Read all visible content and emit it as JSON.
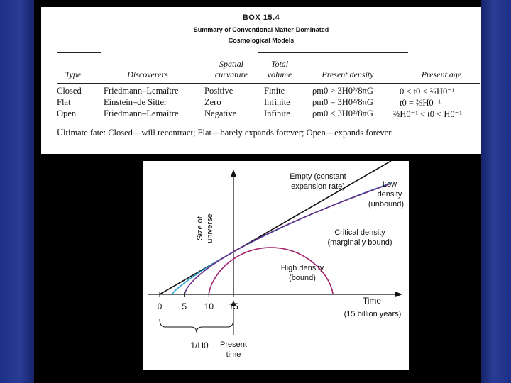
{
  "box": {
    "title": "BOX 15.4",
    "subtitle1": "Summary of Conventional Matter-Dominated",
    "subtitle2": "Cosmological Models",
    "columns": {
      "type": "Type",
      "discoverers": "Discoverers",
      "curvature_l1": "Spatial",
      "curvature_l2": "curvature",
      "volume_l1": "Total",
      "volume_l2": "volume",
      "density": "Present density",
      "age": "Present age"
    },
    "rows": [
      {
        "type": "Closed",
        "discoverers": "Friedmann–Lemaître",
        "curvature": "Positive",
        "volume": "Finite",
        "density": "ρm0 > 3H0²/8πG",
        "age": "0 < t0 < ⅔H0⁻¹"
      },
      {
        "type": "Flat",
        "discoverers": "Einstein–de Sitter",
        "curvature": "Zero",
        "volume": "Infinite",
        "density": "ρm0 = 3H0²/8πG",
        "age": "t0 = ⅔H0⁻¹"
      },
      {
        "type": "Open",
        "discoverers": "Friedmann–Lemaître",
        "curvature": "Negative",
        "volume": "Infinite",
        "density": "ρm0 < 3H0²/8πG",
        "age": "⅔H0⁻¹ < t0 < H0⁻¹"
      }
    ],
    "fate": "Ultimate fate: Closed—will recontract; Flat—barely expands forever; Open—expands forever."
  },
  "chart_data": {
    "type": "line",
    "ylabel_l1": "Size of",
    "ylabel_l2": "universe",
    "xlabel": "Time",
    "xunit": "(15 billion years)",
    "x_ticks": [
      "0",
      "5",
      "10",
      "15"
    ],
    "brace_label": "1/H0",
    "present_l1": "Present",
    "present_l2": "time",
    "curves": [
      {
        "name": "Empty (constant expansion rate)",
        "label_l1": "Empty (constant",
        "label_l2": "expansion rate)",
        "color": "#111111",
        "start_time": 0
      },
      {
        "name": "Low density (unbound)",
        "label_l1": "Low",
        "label_l2": "density",
        "label_l3": "(unbound)",
        "color": "#2aa0d2",
        "start_time": 2.5
      },
      {
        "name": "Critical density (marginally bound)",
        "label_l1": "Critical density",
        "label_l2": "(marginally bound)",
        "color": "#6a2a86",
        "start_time": 5
      },
      {
        "name": "High density (bound)",
        "label_l1": "High density",
        "label_l2": "(bound)",
        "color": "#a3206a",
        "start_time": 10
      }
    ]
  }
}
